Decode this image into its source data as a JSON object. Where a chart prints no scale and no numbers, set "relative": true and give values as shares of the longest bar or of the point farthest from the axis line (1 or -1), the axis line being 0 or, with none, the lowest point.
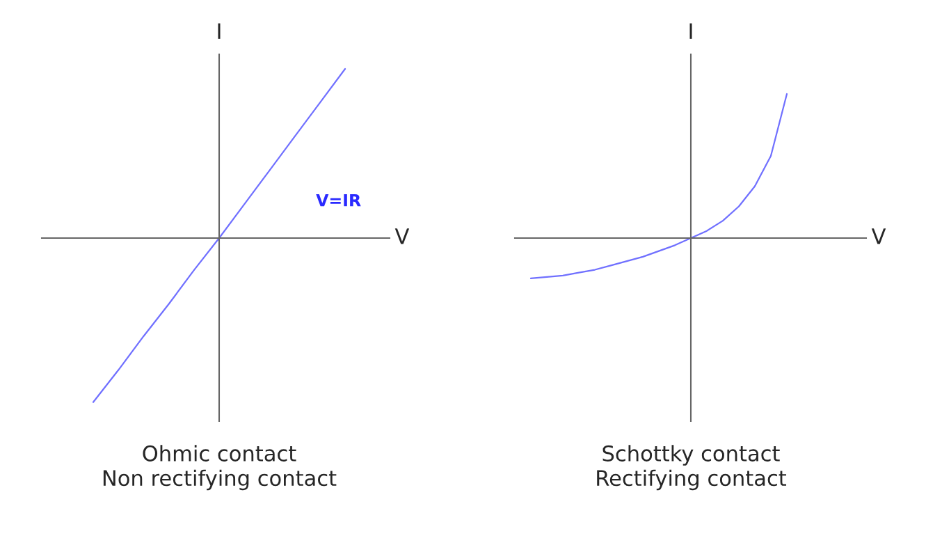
{
  "chart_data": [
    {
      "type": "line",
      "relative": true,
      "title": "Ohmic contact\nNon rectifying contact",
      "xlabel": "V",
      "ylabel": "I",
      "categories": [
        null,
        null,
        null,
        null,
        null,
        null,
        null,
        null,
        null,
        null,
        null
      ],
      "series": [
        {
          "name": "V=IR",
          "color": "#7070ff",
          "values": [
            -0.97,
            -0.78,
            -0.58,
            -0.39,
            -0.19,
            0,
            0.2,
            0.4,
            0.6,
            0.8,
            1.0
          ]
        }
      ],
      "legend": false,
      "marker": "none",
      "line_style": "solid"
    },
    {
      "type": "line",
      "relative": true,
      "title": "Schottky contact\nRectifying contact",
      "xlabel": "V",
      "ylabel": "I",
      "categories": [
        null,
        null,
        null,
        null,
        null,
        null,
        null,
        null,
        null,
        null,
        null,
        null,
        null,
        null,
        null,
        null,
        null
      ],
      "series": [
        {
          "color": "#7070ff",
          "values": [
            -0.28,
            -0.27,
            -0.26,
            -0.24,
            -0.22,
            -0.19,
            -0.16,
            -0.13,
            -0.09,
            -0.05,
            0,
            0.05,
            0.12,
            0.22,
            0.36,
            0.57,
            1.0
          ]
        }
      ],
      "legend": false,
      "marker": "none",
      "line_style": "solid"
    }
  ]
}
